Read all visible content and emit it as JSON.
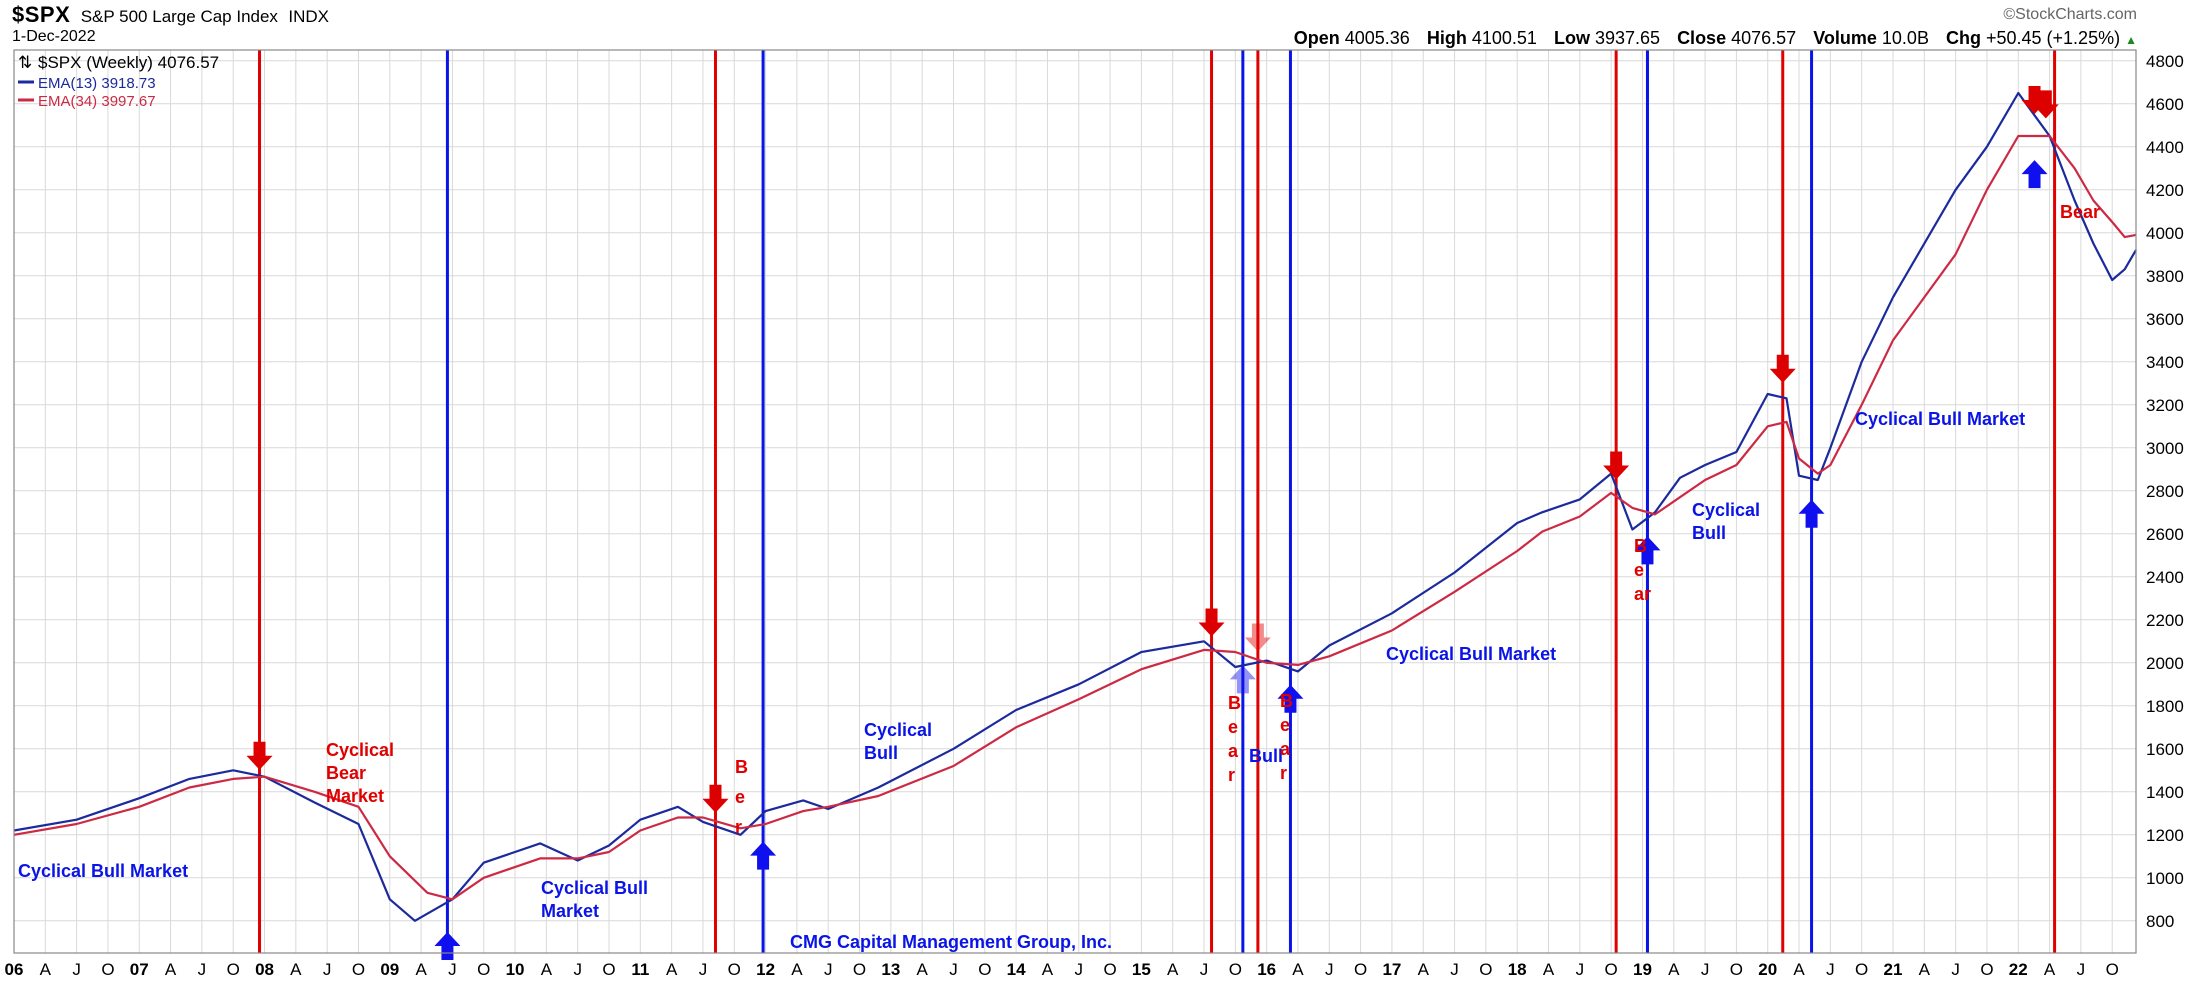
{
  "header": {
    "symbol": "$SPX",
    "name": "S&P 500 Large Cap Index",
    "exchange": "INDX",
    "date": "1-Dec-2022",
    "brand": "©StockCharts.com",
    "open_label": "Open",
    "open": "4005.36",
    "high_label": "High",
    "high": "4100.51",
    "low_label": "Low",
    "low": "3937.65",
    "close_label": "Close",
    "close": "4076.57",
    "volume_label": "Volume",
    "volume": "10.0B",
    "chg_label": "Chg",
    "chg": "+50.45 (+1.25%)",
    "up_icon": "triangle-up-icon"
  },
  "legend": {
    "price": "$SPX (Weekly) 4076.57",
    "ema13": "EMA(13) 3918.73",
    "ema34": "EMA(34) 3997.67"
  },
  "colors": {
    "ema13": "#1b2a9c",
    "ema34": "#cc2a44",
    "bull": "#0a14e6",
    "bear": "#e00000",
    "grid": "#d9d9d9"
  },
  "chart_data": {
    "type": "line",
    "title": "$SPX S&P 500 Large Cap Index INDX",
    "xlim": [
      2006.0,
      2022.94
    ],
    "ylim": [
      650,
      4850
    ],
    "y_ticks": [
      800,
      1000,
      1200,
      1400,
      1600,
      1800,
      2000,
      2200,
      2400,
      2600,
      2800,
      3000,
      3200,
      3400,
      3600,
      3800,
      4000,
      4200,
      4400,
      4600,
      4800
    ],
    "x_year_labels": [
      "06",
      "07",
      "08",
      "09",
      "10",
      "11",
      "12",
      "13",
      "14",
      "15",
      "16",
      "17",
      "18",
      "19",
      "20",
      "21",
      "22"
    ],
    "x_month_labels": [
      "A",
      "J",
      "O"
    ],
    "grid": true,
    "legend_position": "top-left",
    "series": [
      {
        "name": "EMA(13)",
        "x": [
          2006.0,
          2006.5,
          2007.0,
          2007.4,
          2007.75,
          2008.0,
          2008.4,
          2008.75,
          2009.0,
          2009.2,
          2009.5,
          2009.75,
          2010.2,
          2010.5,
          2010.75,
          2011.0,
          2011.3,
          2011.5,
          2011.8,
          2012.0,
          2012.3,
          2012.5,
          2012.9,
          2013.5,
          2014.0,
          2014.5,
          2015.0,
          2015.5,
          2015.75,
          2016.0,
          2016.25,
          2016.5,
          2017.0,
          2017.5,
          2018.0,
          2018.2,
          2018.5,
          2018.75,
          2018.92,
          2019.1,
          2019.3,
          2019.5,
          2019.75,
          2020.0,
          2020.15,
          2020.25,
          2020.4,
          2020.5,
          2020.75,
          2021.0,
          2021.5,
          2021.75,
          2022.0,
          2022.25,
          2022.45,
          2022.6,
          2022.75,
          2022.85,
          2022.94
        ],
        "values": [
          1220,
          1270,
          1370,
          1460,
          1500,
          1470,
          1350,
          1250,
          900,
          800,
          900,
          1070,
          1160,
          1080,
          1150,
          1270,
          1330,
          1260,
          1200,
          1310,
          1360,
          1320,
          1420,
          1600,
          1780,
          1900,
          2050,
          2100,
          1980,
          2010,
          1960,
          2080,
          2230,
          2420,
          2650,
          2700,
          2760,
          2880,
          2620,
          2700,
          2860,
          2920,
          2980,
          3250,
          3230,
          2870,
          2850,
          3000,
          3400,
          3700,
          4200,
          4400,
          4650,
          4450,
          4150,
          3950,
          3780,
          3830,
          3920
        ]
      },
      {
        "name": "EMA(34)",
        "x": [
          2006.0,
          2006.5,
          2007.0,
          2007.4,
          2007.75,
          2008.0,
          2008.4,
          2008.75,
          2009.0,
          2009.3,
          2009.5,
          2009.75,
          2010.2,
          2010.5,
          2010.75,
          2011.0,
          2011.3,
          2011.5,
          2011.8,
          2012.0,
          2012.3,
          2012.5,
          2012.9,
          2013.5,
          2014.0,
          2014.5,
          2015.0,
          2015.5,
          2015.75,
          2016.0,
          2016.25,
          2016.5,
          2017.0,
          2017.5,
          2018.0,
          2018.2,
          2018.5,
          2018.75,
          2018.92,
          2019.1,
          2019.3,
          2019.5,
          2019.75,
          2020.0,
          2020.15,
          2020.25,
          2020.4,
          2020.5,
          2020.75,
          2021.0,
          2021.5,
          2021.75,
          2022.0,
          2022.25,
          2022.45,
          2022.6,
          2022.75,
          2022.85,
          2022.94
        ],
        "values": [
          1200,
          1250,
          1330,
          1420,
          1460,
          1470,
          1400,
          1330,
          1100,
          930,
          900,
          1000,
          1090,
          1090,
          1120,
          1220,
          1280,
          1280,
          1230,
          1250,
          1310,
          1330,
          1380,
          1520,
          1700,
          1830,
          1970,
          2060,
          2050,
          2000,
          1990,
          2030,
          2150,
          2330,
          2520,
          2610,
          2680,
          2790,
          2720,
          2690,
          2770,
          2850,
          2920,
          3100,
          3120,
          2950,
          2880,
          2920,
          3200,
          3500,
          3900,
          4200,
          4450,
          4450,
          4300,
          4150,
          4050,
          3980,
          3990
        ]
      }
    ],
    "annotations": [
      {
        "text": "Cyclical Bull Market",
        "color": "blue"
      },
      {
        "text": "Cyclical Bear Market",
        "color": "red"
      },
      {
        "text": "Cyclical Bull Market",
        "color": "blue"
      },
      {
        "text": "B e r",
        "color": "red"
      },
      {
        "text": "Cyclical Bull",
        "color": "blue"
      },
      {
        "text": "CMG Capital Management Group, Inc.",
        "color": "blue"
      },
      {
        "text": "B e a r",
        "color": "red"
      },
      {
        "text": "Bull",
        "color": "blue"
      },
      {
        "text": "B e a r",
        "color": "red"
      },
      {
        "text": "Cyclical Bull Market",
        "color": "blue"
      },
      {
        "text": "B e ar",
        "color": "red"
      },
      {
        "text": "Cyclical Bull",
        "color": "blue"
      },
      {
        "text": "Cyclical Bull Market",
        "color": "blue"
      },
      {
        "text": "Bear",
        "color": "red"
      }
    ],
    "vertical_markers": [
      {
        "x": 2007.96,
        "type": "bear"
      },
      {
        "x": 2009.46,
        "type": "bull"
      },
      {
        "x": 2011.6,
        "type": "bear"
      },
      {
        "x": 2011.98,
        "type": "bull"
      },
      {
        "x": 2015.56,
        "type": "bear"
      },
      {
        "x": 2015.81,
        "type": "bull"
      },
      {
        "x": 2015.93,
        "type": "bear"
      },
      {
        "x": 2016.19,
        "type": "bull"
      },
      {
        "x": 2018.79,
        "type": "bear"
      },
      {
        "x": 2019.04,
        "type": "bull"
      },
      {
        "x": 2020.12,
        "type": "bear"
      },
      {
        "x": 2020.35,
        "type": "bull"
      },
      {
        "x": 2022.29,
        "type": "bear"
      }
    ],
    "arrows": [
      {
        "x": 2007.96,
        "y": 1530,
        "dir": "down"
      },
      {
        "x": 2009.46,
        "y": 720,
        "dir": "up"
      },
      {
        "x": 2011.6,
        "y": 1330,
        "dir": "down"
      },
      {
        "x": 2011.98,
        "y": 1140,
        "dir": "up"
      },
      {
        "x": 2015.56,
        "y": 2150,
        "dir": "down"
      },
      {
        "x": 2015.81,
        "y": 1960,
        "dir": "up",
        "faded": true
      },
      {
        "x": 2015.93,
        "y": 2080,
        "dir": "down",
        "faded": true
      },
      {
        "x": 2016.19,
        "y": 1870,
        "dir": "up"
      },
      {
        "x": 2018.79,
        "y": 2880,
        "dir": "down"
      },
      {
        "x": 2019.04,
        "y": 2560,
        "dir": "up"
      },
      {
        "x": 2020.12,
        "y": 3330,
        "dir": "down"
      },
      {
        "x": 2020.35,
        "y": 2730,
        "dir": "up"
      },
      {
        "x": 2022.13,
        "y": 4580,
        "dir": "down"
      },
      {
        "x": 2022.22,
        "y": 4560,
        "dir": "down"
      },
      {
        "x": 2022.13,
        "y": 4310,
        "dir": "up"
      }
    ]
  }
}
